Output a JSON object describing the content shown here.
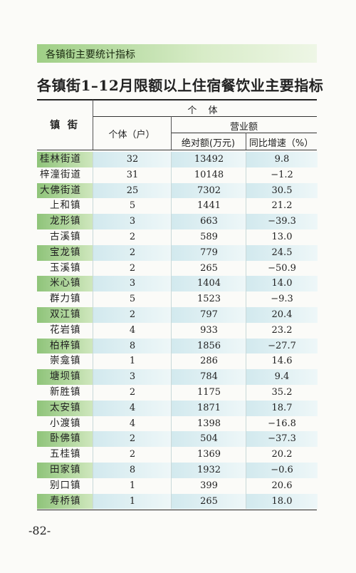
{
  "header": {
    "title": "各镇街主要统计指标"
  },
  "table": {
    "title": "各镇街1–12月限额以上住宿餐饮业主要指标",
    "head": {
      "town": "镇 街",
      "individual": "个 体",
      "households": "个体（户）",
      "revenue": "营业额",
      "absolute": "绝对额(万元)",
      "growth": "同比增速（%）"
    },
    "rows": [
      [
        "桂林街道",
        "32",
        "13492",
        "9.8"
      ],
      [
        "梓潼街道",
        "31",
        "10148",
        "−1.2"
      ],
      [
        "大佛街道",
        "25",
        "7302",
        "30.5"
      ],
      [
        "上和镇",
        "5",
        "1441",
        "21.2"
      ],
      [
        "龙形镇",
        "3",
        "663",
        "−39.3"
      ],
      [
        "古溪镇",
        "2",
        "589",
        "13.0"
      ],
      [
        "宝龙镇",
        "2",
        "779",
        "24.5"
      ],
      [
        "玉溪镇",
        "2",
        "265",
        "−50.9"
      ],
      [
        "米心镇",
        "3",
        "1404",
        "14.0"
      ],
      [
        "群力镇",
        "5",
        "1523",
        "−9.3"
      ],
      [
        "双江镇",
        "2",
        "797",
        "20.4"
      ],
      [
        "花岩镇",
        "4",
        "933",
        "23.2"
      ],
      [
        "柏梓镇",
        "8",
        "1856",
        "−27.7"
      ],
      [
        "崇龛镇",
        "1",
        "286",
        "14.6"
      ],
      [
        "塘坝镇",
        "3",
        "784",
        "9.4"
      ],
      [
        "新胜镇",
        "2",
        "1175",
        "35.2"
      ],
      [
        "太安镇",
        "4",
        "1871",
        "18.7"
      ],
      [
        "小渡镇",
        "4",
        "1398",
        "−16.8"
      ],
      [
        "卧佛镇",
        "2",
        "504",
        "−37.3"
      ],
      [
        "五桂镇",
        "2",
        "1369",
        "20.2"
      ],
      [
        "田家镇",
        "8",
        "1932",
        "−0.6"
      ],
      [
        "别口镇",
        "1",
        "399",
        "20.6"
      ],
      [
        "寿桥镇",
        "1",
        "265",
        "18.0"
      ]
    ]
  },
  "footer": {
    "page": "-82-"
  }
}
